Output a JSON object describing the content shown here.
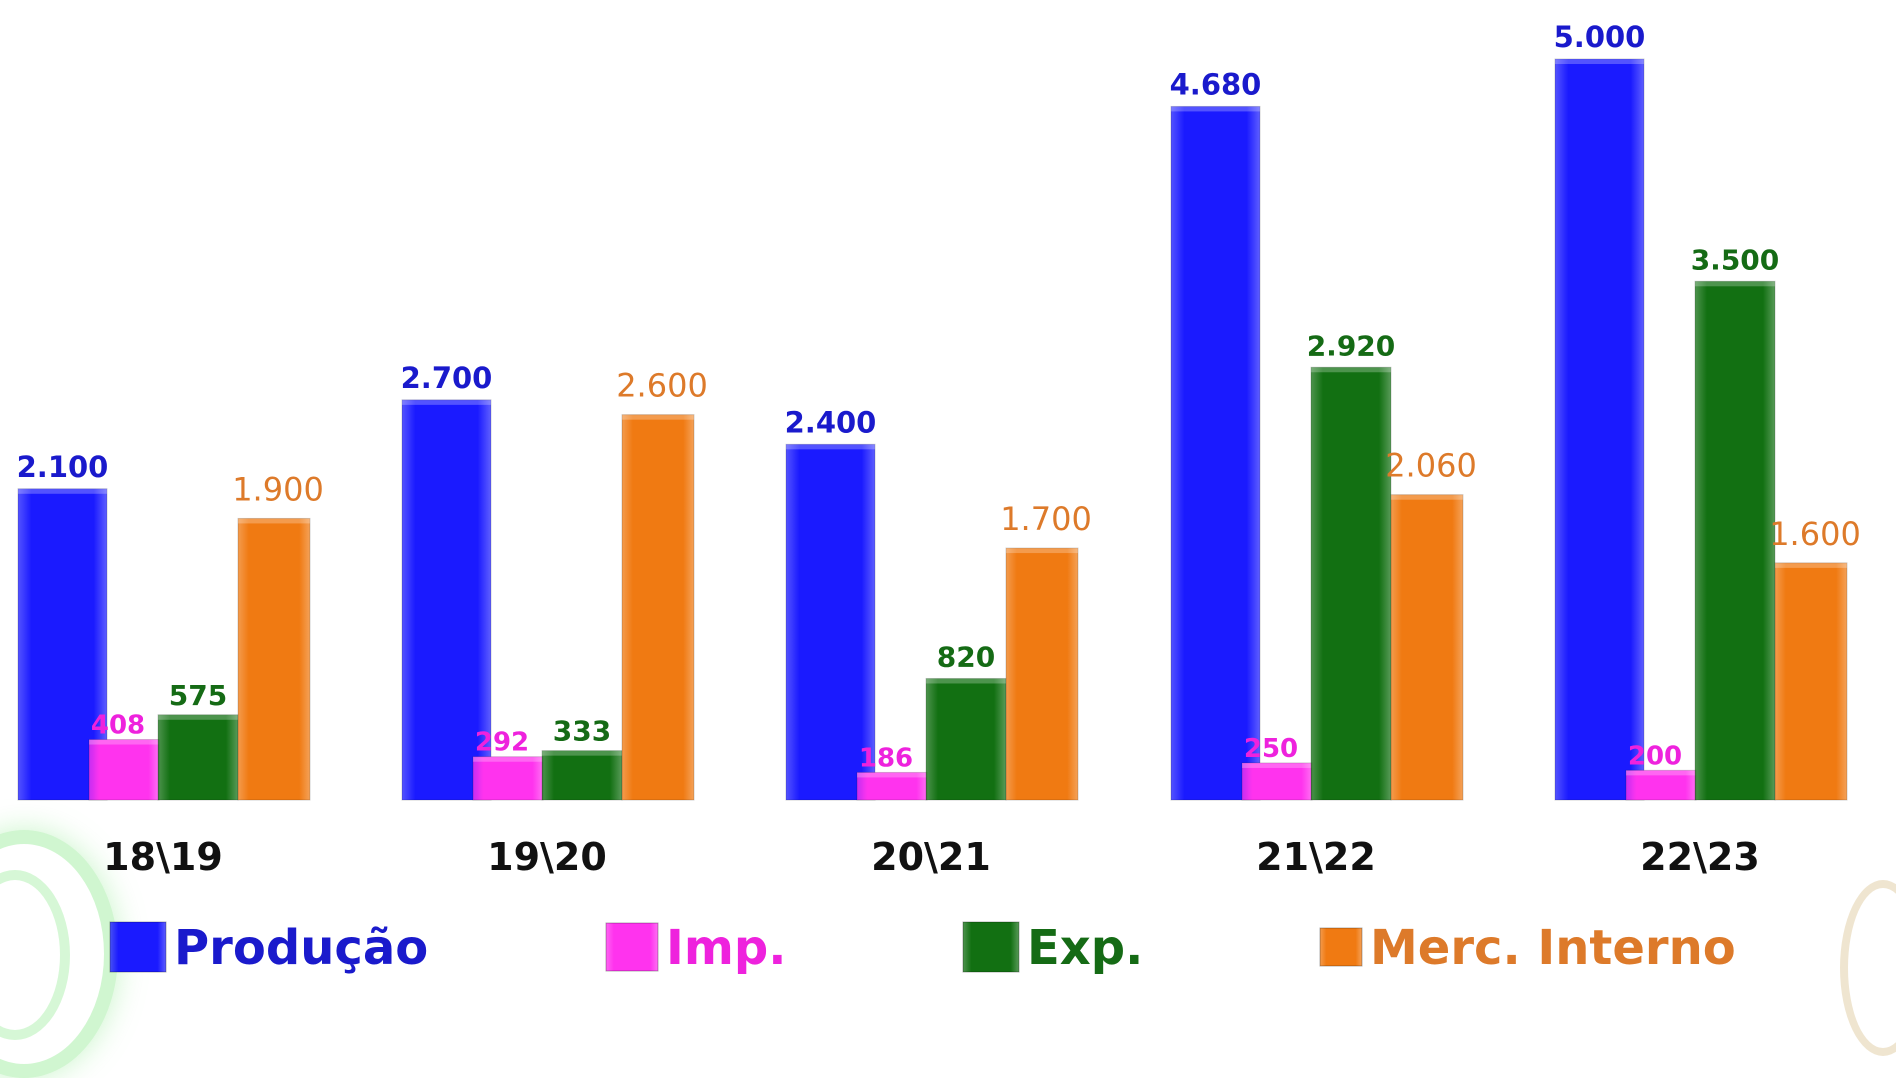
{
  "colors": {
    "producao": "#1a1aff",
    "imp": "#ff33ee",
    "exp": "#127012",
    "merc": "#f07a12",
    "producao_label": "#1a1acc",
    "imp_label": "#ee22dd",
    "exp_label": "#156b15",
    "merc_label": "#dd7a2a",
    "category_label": "#111111"
  },
  "chart_data": {
    "type": "bar",
    "categories": [
      "18\\19",
      "19\\20",
      "20\\21",
      "21\\22",
      "22\\23"
    ],
    "ylim": [
      0,
      5000
    ],
    "grid": false,
    "legend_position": "bottom",
    "series": [
      {
        "name": "Produção",
        "key": "producao",
        "values": [
          2100,
          2700,
          2400,
          4680,
          5000
        ],
        "labels": [
          "2.100",
          "2.700",
          "2.400",
          "4.680",
          "5.000"
        ]
      },
      {
        "name": "Imp.",
        "key": "imp",
        "values": [
          408,
          292,
          186,
          250,
          200
        ],
        "labels": [
          "408",
          "292",
          "186",
          "250",
          "200"
        ]
      },
      {
        "name": "Exp.",
        "key": "exp",
        "values": [
          575,
          333,
          820,
          2920,
          3500
        ],
        "labels": [
          "575",
          "333",
          "820",
          "2.920",
          "3.500"
        ]
      },
      {
        "name": "Merc. Interno",
        "key": "merc",
        "values": [
          1900,
          2600,
          1700,
          2060,
          1600
        ],
        "labels": [
          "1.900",
          "2.600",
          "1.700",
          "2.060",
          "1.600"
        ]
      }
    ]
  }
}
